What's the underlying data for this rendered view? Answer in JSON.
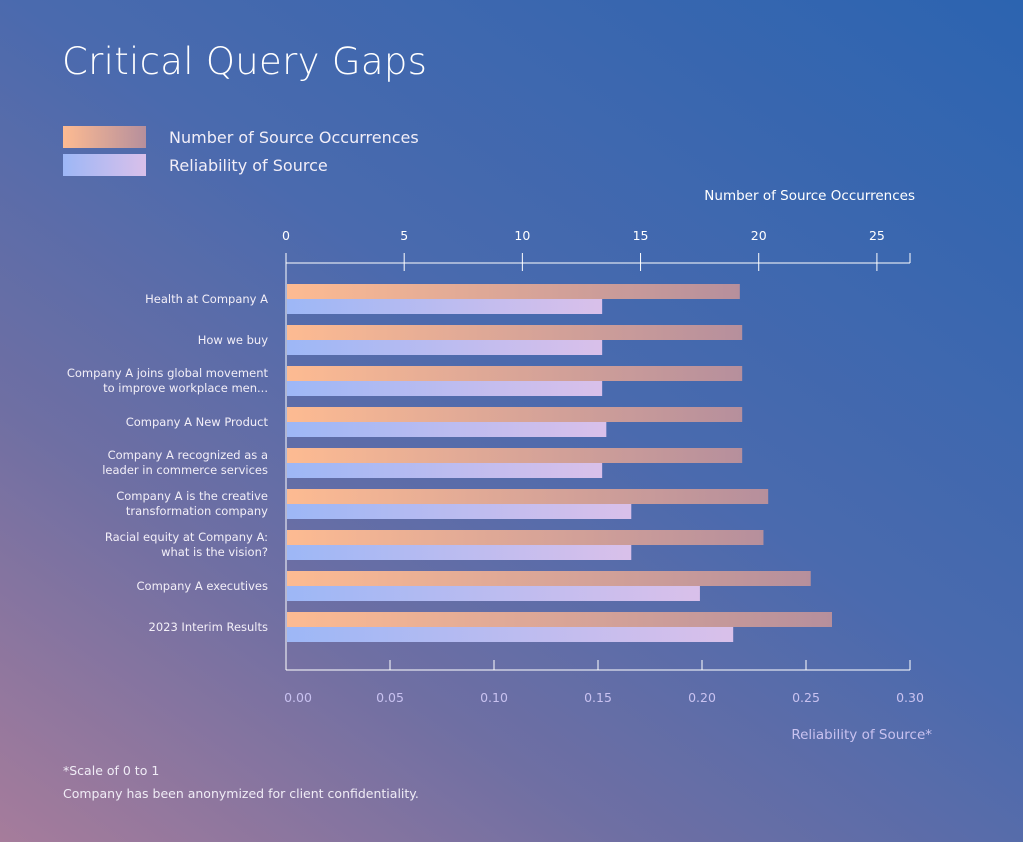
{
  "title": "Critical Query Gaps",
  "legend": [
    {
      "label": "Number of Source Occurrences"
    },
    {
      "label": "Reliability of Source"
    }
  ],
  "colors": {
    "orange_start": "#fdbb92",
    "orange_end": "#b68f9c",
    "blue_start": "#9db7f6",
    "blue_end": "#d9c0ea",
    "axis": "#ffffff",
    "bottom_tick_text": "#c9c2f0"
  },
  "footnotes": [
    "*Scale of 0 to 1",
    "Company has been anonymized for client confidentiality."
  ],
  "chart_data": {
    "type": "bar",
    "orientation": "horizontal",
    "title": "Critical Query Gaps",
    "categories": [
      [
        "Health at Company A"
      ],
      [
        "How we buy"
      ],
      [
        "Company A joins global movement",
        "to improve workplace men..."
      ],
      [
        "Company A New Product"
      ],
      [
        "Company A recognized as a",
        "leader in commerce services"
      ],
      [
        "Company A is the creative",
        "transformation company"
      ],
      [
        "Racial equity at Company A:",
        "what is the vision?"
      ],
      [
        "Company A executives"
      ],
      [
        "2023 Interim Results"
      ]
    ],
    "series": [
      {
        "name": "Number of Source Occurrences",
        "axis": "top",
        "values": [
          19.2,
          19.3,
          19.3,
          19.3,
          19.3,
          20.4,
          20.2,
          22.2,
          23.1
        ]
      },
      {
        "name": "Reliability of Source",
        "axis": "bottom",
        "values": [
          0.152,
          0.152,
          0.152,
          0.154,
          0.152,
          0.166,
          0.166,
          0.199,
          0.215
        ]
      }
    ],
    "top_axis": {
      "label": "Number of Source Occurrences",
      "range": [
        0,
        26.4
      ],
      "ticks": [
        "0",
        "5",
        "10",
        "15",
        "20",
        "25"
      ],
      "tick_values": [
        0,
        5,
        10,
        15,
        20,
        25
      ]
    },
    "bottom_axis": {
      "label": "Reliability of Source*",
      "range": [
        0,
        0.3
      ],
      "ticks": [
        "0.00",
        "0.05",
        "0.10",
        "0.15",
        "0.20",
        "0.25",
        "0.30"
      ],
      "tick_values": [
        0,
        0.05,
        0.1,
        0.15,
        0.2,
        0.25,
        0.3
      ]
    },
    "grid": false,
    "legend_position": "top-left"
  }
}
